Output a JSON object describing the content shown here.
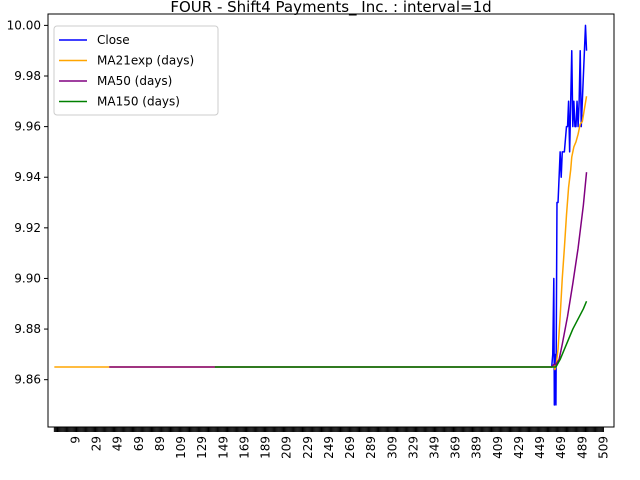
{
  "chart_data": {
    "type": "line",
    "title": "FOUR - Shift4 Payments_ Inc. : interval=1d",
    "xlabel": "",
    "ylabel": "",
    "xlim": [
      -17,
      519
    ],
    "ylim": [
      9.8413,
      10.0045
    ],
    "grid": false,
    "legend_position": "top-left",
    "x_ticks": [
      9,
      29,
      49,
      69,
      89,
      109,
      129,
      149,
      169,
      189,
      209,
      229,
      249,
      269,
      289,
      309,
      329,
      349,
      369,
      389,
      409,
      429,
      449,
      469,
      489,
      509
    ],
    "y_ticks": [
      9.86,
      9.88,
      9.9,
      9.92,
      9.94,
      9.96,
      9.98,
      10.0
    ],
    "y_tick_labels": [
      "9.86",
      "9.88",
      "9.90",
      "9.92",
      "9.94",
      "9.96",
      "9.98",
      "10.00"
    ],
    "series": [
      {
        "name": "Close",
        "color": "#0000ff",
        "points": [
          [
            460,
            9.865
          ],
          [
            461,
            9.87
          ],
          [
            462,
            9.9
          ],
          [
            462.5,
            9.85
          ],
          [
            463,
            9.87
          ],
          [
            464,
            9.85
          ],
          [
            465,
            9.93
          ],
          [
            466,
            9.93
          ],
          [
            467,
            9.94
          ],
          [
            468,
            9.95
          ],
          [
            469,
            9.94
          ],
          [
            470,
            9.95
          ],
          [
            471,
            9.95
          ],
          [
            472,
            9.95
          ],
          [
            474,
            9.96
          ],
          [
            475,
            9.96
          ],
          [
            476,
            9.97
          ],
          [
            477,
            9.95
          ],
          [
            478,
            9.97
          ],
          [
            479,
            9.99
          ],
          [
            480,
            9.96
          ],
          [
            481,
            9.97
          ],
          [
            482,
            9.96
          ],
          [
            483,
            9.96
          ],
          [
            484,
            9.97
          ],
          [
            485,
            9.96
          ],
          [
            486,
            9.97
          ],
          [
            487,
            9.99
          ],
          [
            488,
            9.96
          ],
          [
            489,
            9.97
          ],
          [
            491,
            9.99
          ],
          [
            492,
            10.0
          ],
          [
            493,
            9.99
          ]
        ]
      },
      {
        "name": "MA21exp (days)",
        "color": "#ffa500",
        "points": [
          [
            -11,
            9.865
          ],
          [
            460,
            9.865
          ],
          [
            462,
            9.866
          ],
          [
            463,
            9.864
          ],
          [
            464,
            9.865
          ],
          [
            466,
            9.872
          ],
          [
            468,
            9.885
          ],
          [
            470,
            9.9
          ],
          [
            472,
            9.912
          ],
          [
            474,
            9.925
          ],
          [
            476,
            9.936
          ],
          [
            478,
            9.943
          ],
          [
            479,
            9.948
          ],
          [
            481,
            9.952
          ],
          [
            483,
            9.954
          ],
          [
            485,
            9.957
          ],
          [
            487,
            9.961
          ],
          [
            489,
            9.962
          ],
          [
            491,
            9.967
          ],
          [
            493,
            9.972
          ]
        ]
      },
      {
        "name": "MA50 (days)",
        "color": "#800080",
        "points": [
          [
            41,
            9.865
          ],
          [
            460,
            9.865
          ],
          [
            462,
            9.866
          ],
          [
            464,
            9.866
          ],
          [
            467,
            9.868
          ],
          [
            470,
            9.874
          ],
          [
            475,
            9.885
          ],
          [
            480,
            9.898
          ],
          [
            485,
            9.912
          ],
          [
            490,
            9.929
          ],
          [
            493,
            9.942
          ]
        ]
      },
      {
        "name": "MA150 (days)",
        "color": "#008000",
        "points": [
          [
            141,
            9.865
          ],
          [
            460,
            9.865
          ],
          [
            464,
            9.865
          ],
          [
            468,
            9.868
          ],
          [
            472,
            9.872
          ],
          [
            476,
            9.876
          ],
          [
            480,
            9.88
          ],
          [
            485,
            9.884
          ],
          [
            490,
            9.888
          ],
          [
            493,
            9.891
          ]
        ]
      }
    ]
  }
}
